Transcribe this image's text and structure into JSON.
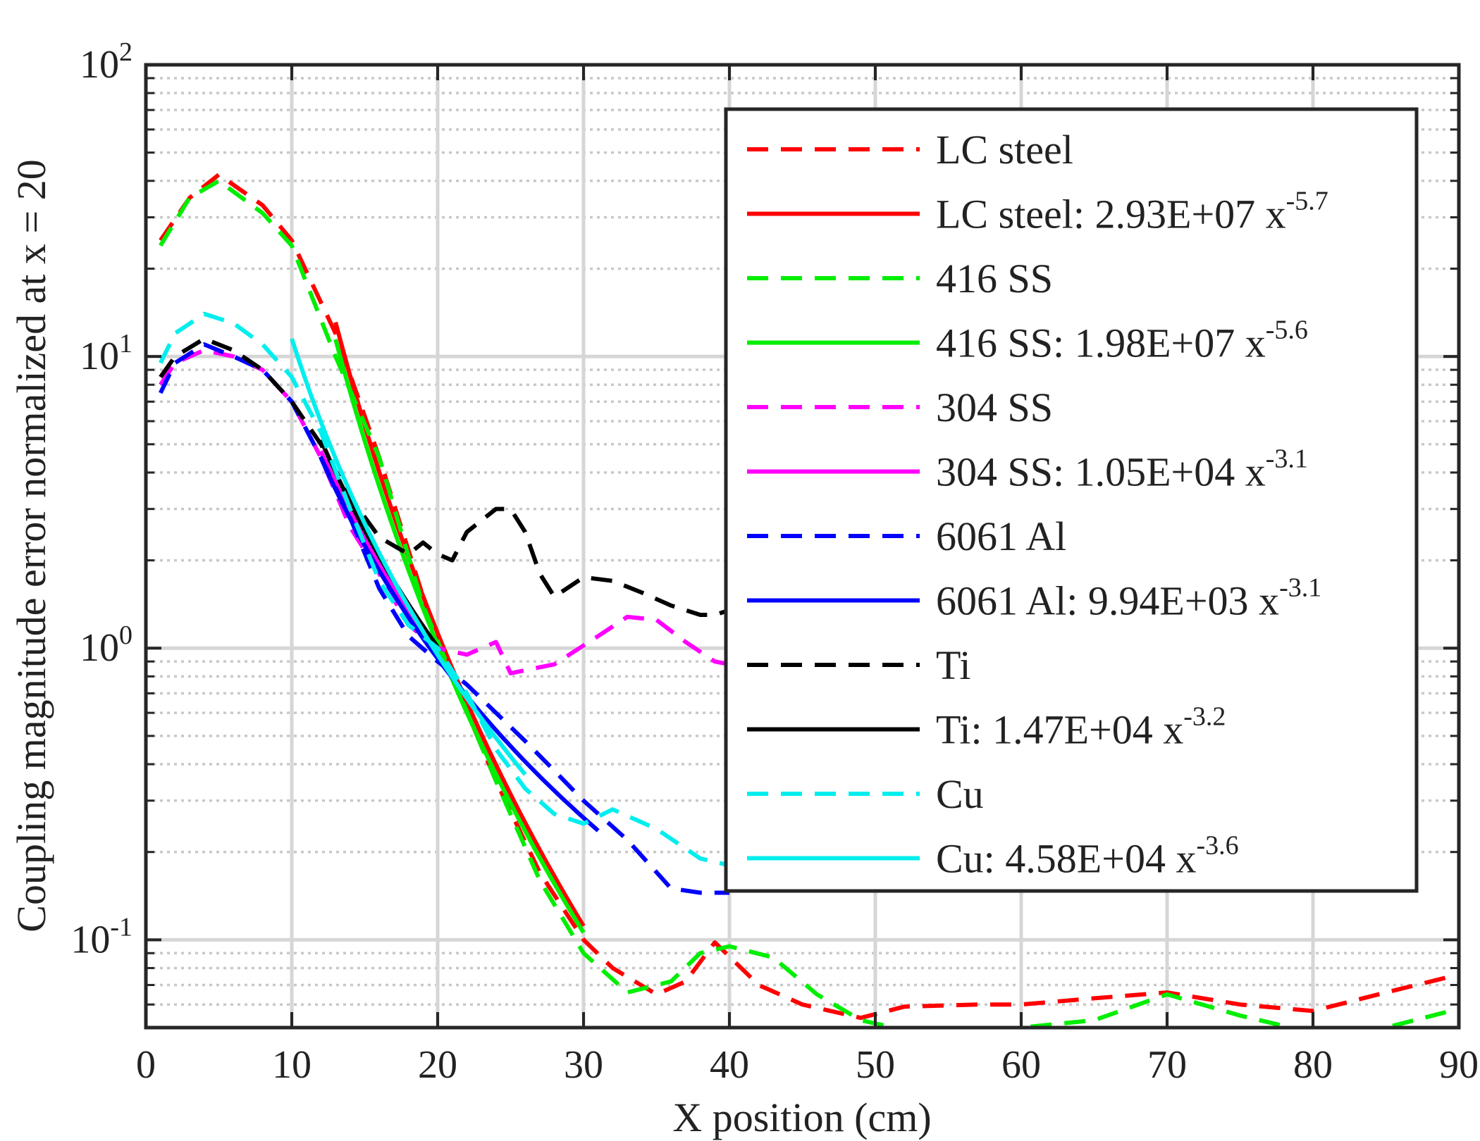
{
  "chart_data": {
    "type": "line",
    "title": "",
    "xlabel": "X position (cm)",
    "ylabel": "Coupling magnitude error normalized at x = 20",
    "xlim": [
      0,
      90
    ],
    "ylim": [
      0.05,
      100
    ],
    "yscale": "log",
    "grid": "major and minor",
    "legend_position": "top-right",
    "x_ticks": [
      "0",
      "10",
      "20",
      "30",
      "40",
      "50",
      "60",
      "70",
      "80",
      "90"
    ],
    "y_ticks": [
      {
        "base": "10",
        "exp": "-1",
        "value": 0.1
      },
      {
        "base": "10",
        "exp": "0",
        "value": 1
      },
      {
        "base": "10",
        "exp": "1",
        "value": 10
      },
      {
        "base": "10",
        "exp": "2",
        "value": 100
      }
    ],
    "series": [
      {
        "name": "LC steel",
        "color": "#ff0000",
        "dash": true,
        "x": [
          1,
          3,
          5,
          8,
          10,
          13,
          16,
          19,
          21,
          24,
          27,
          30,
          32,
          35,
          37,
          39,
          42,
          45,
          49,
          52,
          57,
          60,
          65,
          70,
          75,
          80,
          85,
          90
        ],
        "y": [
          25,
          35,
          42,
          33,
          25,
          12,
          4.5,
          1.5,
          0.8,
          0.35,
          0.17,
          0.1,
          0.08,
          0.065,
          0.072,
          0.098,
          0.07,
          0.06,
          0.054,
          0.059,
          0.06,
          0.06,
          0.063,
          0.066,
          0.06,
          0.057,
          0.066,
          0.076
        ]
      },
      {
        "name": "LC steel: 2.93E+07 x",
        "exp": "-5.7",
        "color": "#ff0000",
        "dash": false,
        "fit": {
          "a": 29300000,
          "b": -5.7
        },
        "x_range": [
          13,
          30
        ]
      },
      {
        "name": "416 SS",
        "color": "#00ee00",
        "dash": true,
        "x": [
          1,
          3,
          5,
          8,
          10,
          13,
          16,
          19,
          21,
          24,
          27,
          30,
          33,
          36,
          38,
          40,
          43,
          46,
          49,
          52,
          55,
          60,
          65,
          70,
          75,
          80,
          85,
          90
        ],
        "y": [
          24,
          35,
          40,
          31,
          24,
          10,
          4.5,
          1.4,
          0.8,
          0.35,
          0.16,
          0.09,
          0.066,
          0.072,
          0.09,
          0.095,
          0.087,
          0.065,
          0.053,
          0.049,
          0.048,
          0.05,
          0.053,
          0.065,
          0.055,
          0.048,
          0.05,
          0.058
        ]
      },
      {
        "name": "416 SS: 1.98E+07 x",
        "exp": "-5.6",
        "color": "#00ee00",
        "dash": false,
        "fit": {
          "a": 19800000,
          "b": -5.6
        },
        "x_range": [
          13,
          30
        ]
      },
      {
        "name": "304 SS",
        "color": "#ff00ff",
        "dash": true,
        "x": [
          1,
          2,
          4,
          6,
          8,
          10,
          12,
          14,
          16,
          18,
          20,
          22,
          24,
          25,
          28,
          31,
          33,
          35,
          37,
          39,
          40
        ],
        "y": [
          8,
          9.5,
          10.5,
          10,
          9,
          7,
          4.5,
          2.6,
          1.8,
          1.2,
          1.0,
          0.95,
          1.05,
          0.82,
          0.88,
          1.1,
          1.28,
          1.25,
          1.05,
          0.9,
          0.88
        ]
      },
      {
        "name": "304 SS: 1.05E+04 x",
        "exp": "-3.1",
        "color": "#ff00ff",
        "dash": false,
        "fit": {
          "a": 10500,
          "b": -3.1
        },
        "x_range": [
          12,
          20
        ]
      },
      {
        "name": "6061 Al",
        "color": "#0000ff",
        "dash": true,
        "x": [
          1,
          2,
          4,
          6,
          8,
          10,
          12,
          14,
          16,
          18,
          20,
          22,
          24,
          26,
          28,
          30,
          33,
          36,
          38,
          40
        ],
        "y": [
          7.5,
          9.5,
          11,
          10,
          9,
          7,
          4.5,
          2.8,
          1.6,
          1.1,
          0.9,
          0.75,
          0.6,
          0.48,
          0.38,
          0.3,
          0.22,
          0.15,
          0.145,
          0.145
        ]
      },
      {
        "name": "6061 Al: 9.94E+03 x",
        "exp": "-3.1",
        "color": "#0000ff",
        "dash": false,
        "fit": {
          "a": 9940,
          "b": -3.1
        },
        "x_range": [
          12,
          31
        ]
      },
      {
        "name": "Ti",
        "color": "#000000",
        "dash": true,
        "x": [
          1,
          2,
          4,
          6,
          8,
          10,
          12,
          14,
          16,
          18,
          19,
          20,
          21,
          22,
          24,
          25,
          26,
          27,
          28,
          30,
          32,
          34,
          36,
          38,
          39,
          40
        ],
        "y": [
          8.5,
          10,
          11.5,
          10.5,
          9,
          7,
          5,
          3.3,
          2.4,
          2.1,
          2.3,
          2.1,
          2.0,
          2.5,
          3.0,
          3.0,
          2.5,
          1.8,
          1.5,
          1.75,
          1.7,
          1.55,
          1.4,
          1.3,
          1.3,
          1.35
        ]
      },
      {
        "name": "Ti: 1.47E+04 x",
        "exp": "-3.2",
        "color": "#000000",
        "dash": false,
        "fit": {
          "a": 14700,
          "b": -3.2
        },
        "x_range": [
          12,
          20
        ]
      },
      {
        "name": "Cu",
        "color": "#00eeee",
        "dash": true,
        "x": [
          1,
          2,
          4,
          6,
          8,
          10,
          12,
          14,
          16,
          18,
          20,
          22,
          24,
          26,
          28,
          30,
          32,
          35,
          38,
          40
        ],
        "y": [
          9.5,
          12,
          14,
          13,
          11,
          8.5,
          5.5,
          3,
          1.7,
          1.2,
          1.0,
          0.7,
          0.45,
          0.33,
          0.27,
          0.25,
          0.28,
          0.24,
          0.19,
          0.18
        ]
      },
      {
        "name": "Cu: 4.58E+04 x",
        "exp": "-3.6",
        "color": "#00eeee",
        "dash": false,
        "fit": {
          "a": 45800,
          "b": -3.6
        },
        "x_range": [
          10,
          26
        ]
      }
    ]
  }
}
